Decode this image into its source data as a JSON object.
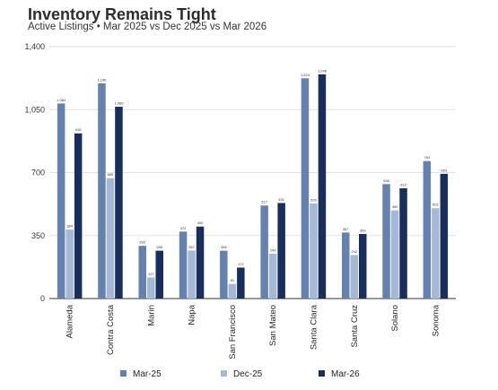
{
  "title": "Inventory Remains Tight",
  "subtitle": "Active Listings • Mar 2025 vs Dec 2025 vs Mar 2026",
  "chart_data": {
    "type": "bar",
    "categories": [
      "Alameda",
      "Contra Costa",
      "Marin",
      "Napa",
      "San Francisco",
      "San Mateo",
      "Santa Clara",
      "Santa Cruz",
      "Solano",
      "Sonoma"
    ],
    "series": [
      {
        "name": "Mar-25",
        "color": "#6581ad",
        "values": [
          1084,
          1196,
          293,
          372,
          266,
          517,
          1224,
          367,
          636,
          764
        ]
      },
      {
        "name": "Dec-25",
        "color": "#a5b8d6",
        "values": [
          384,
          669,
          117,
          267,
          81,
          249,
          529,
          242,
          490,
          502
        ]
      },
      {
        "name": "Mar-26",
        "color": "#1a2e5c",
        "values": [
          918,
          1066,
          266,
          400,
          172,
          531,
          1246,
          359,
          613,
          693
        ]
      }
    ],
    "y_ticks": [
      0,
      350,
      700,
      1050,
      1400
    ],
    "y_tick_labels": [
      "0",
      "350",
      "700",
      "1,050",
      "1,400"
    ],
    "ylim": [
      0,
      1400
    ],
    "grid": "horizontal",
    "legend_position": "bottom"
  }
}
